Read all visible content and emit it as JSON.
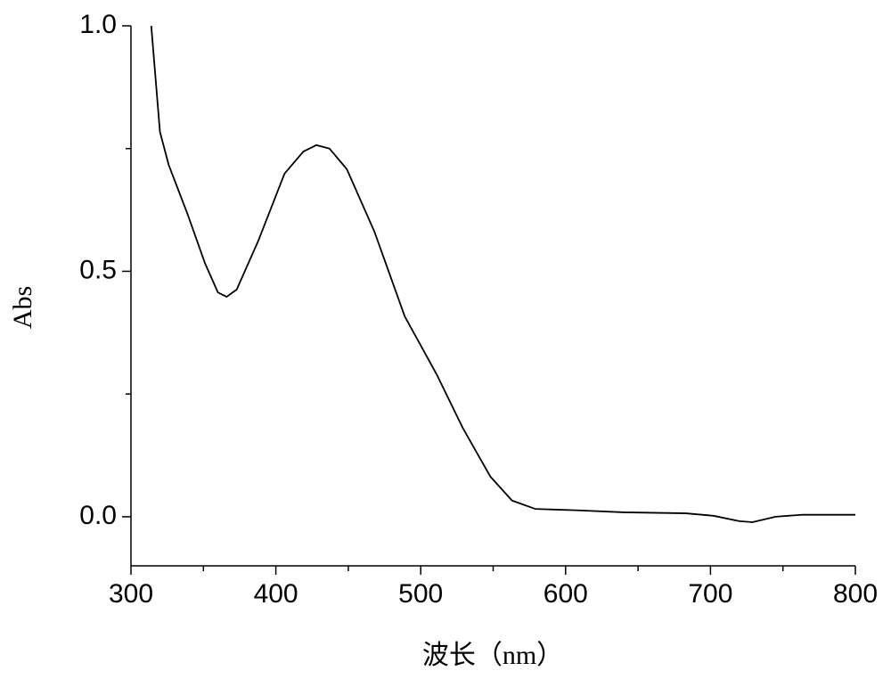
{
  "chart_data": {
    "type": "line",
    "xlabel": "波长（nm）",
    "ylabel": "Abs",
    "x": [
      314,
      320,
      326,
      339,
      351,
      360,
      366,
      373,
      388,
      406,
      419,
      428,
      437,
      449,
      468,
      489,
      511,
      529,
      548,
      563,
      579,
      609,
      640,
      683,
      702,
      720,
      729,
      745,
      763,
      800
    ],
    "values": [
      1.0,
      0.784,
      0.717,
      0.617,
      0.517,
      0.457,
      0.448,
      0.463,
      0.563,
      0.699,
      0.744,
      0.757,
      0.75,
      0.708,
      0.581,
      0.408,
      0.29,
      0.181,
      0.082,
      0.033,
      0.016,
      0.013,
      0.009,
      0.007,
      0.002,
      -0.009,
      -0.011,
      0.0,
      0.004,
      0.004
    ],
    "color": "#000000",
    "xlim": [
      300,
      800
    ],
    "ylim": [
      -0.1,
      1.0
    ],
    "xticks": [
      300,
      400,
      500,
      600,
      700,
      800
    ],
    "xminorticks": [
      350,
      450,
      550,
      650,
      750
    ],
    "yticks": [
      {
        "value": 0,
        "label": "0.0"
      },
      0.5,
      {
        "value": 1,
        "label": "1.0"
      }
    ],
    "yminorticks": [
      0.25,
      0.75
    ]
  }
}
